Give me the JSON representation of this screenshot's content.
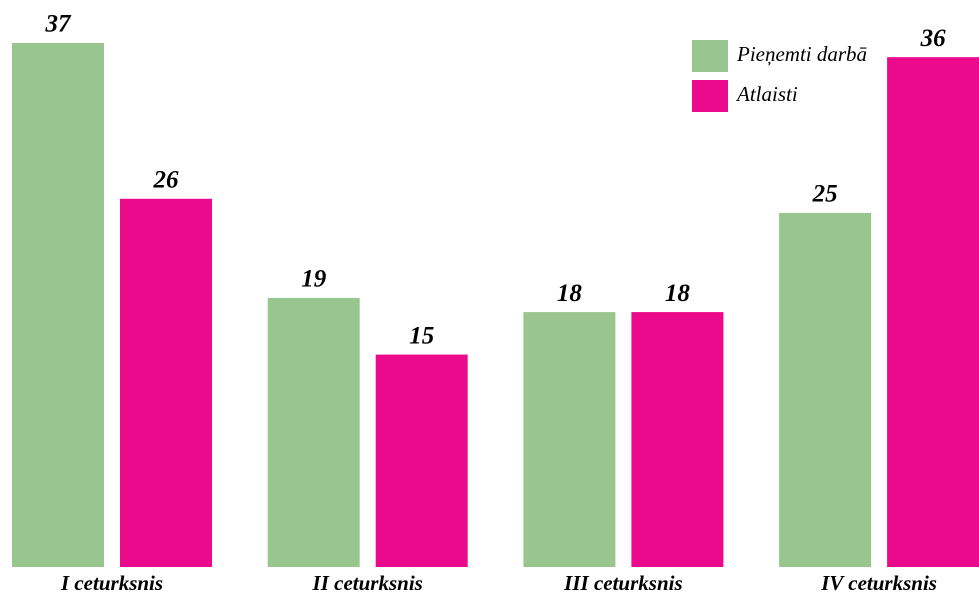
{
  "chart_data": {
    "type": "bar",
    "categories": [
      "I ceturksnis",
      "II ceturksnis",
      "III ceturksnis",
      "IV ceturksnis"
    ],
    "series": [
      {
        "name": "Pieņemti darbā",
        "color": "#98c68e",
        "values": [
          37,
          19,
          18,
          25
        ]
      },
      {
        "name": "Atlaisti",
        "color": "#ec0a8c",
        "values": [
          26,
          15,
          18,
          36
        ]
      }
    ],
    "legend": "top-right"
  }
}
